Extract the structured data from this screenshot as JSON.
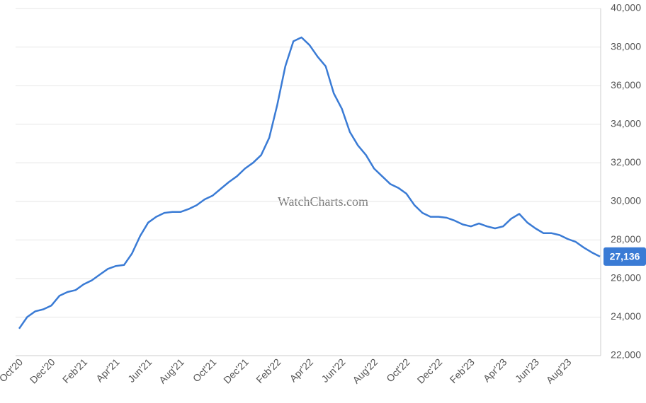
{
  "chart_data": {
    "type": "line",
    "annotation": "WatchCharts.com",
    "categories": [
      "Oct'20",
      null,
      null,
      null,
      "Dec'20",
      null,
      null,
      null,
      "Feb'21",
      null,
      null,
      null,
      "Apr'21",
      null,
      null,
      null,
      "Jun'21",
      null,
      null,
      null,
      "Aug'21",
      null,
      null,
      null,
      "Oct'21",
      null,
      null,
      null,
      "Dec'21",
      null,
      null,
      null,
      "Feb'22",
      null,
      null,
      null,
      "Apr'22",
      null,
      null,
      null,
      "Jun'22",
      null,
      null,
      null,
      "Aug'22",
      null,
      null,
      null,
      "Oct'22",
      null,
      null,
      null,
      "Dec'22",
      null,
      null,
      null,
      "Feb'23",
      null,
      null,
      null,
      "Apr'23",
      null,
      null,
      null,
      "Jun'23",
      null,
      null,
      null,
      "Aug'23",
      null,
      null,
      null,
      null
    ],
    "series": [
      {
        "color": "#3a7bd5",
        "values": [
          23400,
          24000,
          24300,
          24400,
          24600,
          25100,
          25300,
          25400,
          25700,
          25900,
          26200,
          26500,
          26650,
          26700,
          27300,
          28200,
          28900,
          29200,
          29400,
          29450,
          29450,
          29600,
          29800,
          30100,
          30300,
          30650,
          31000,
          31300,
          31700,
          32000,
          32400,
          33300,
          35000,
          37000,
          38300,
          38500,
          38100,
          37500,
          37000,
          35600,
          34800,
          33600,
          32900,
          32400,
          31700,
          31300,
          30900,
          30700,
          30400,
          29800,
          29400,
          29200,
          29200,
          29150,
          29000,
          28800,
          28700,
          28850,
          28700,
          28600,
          28700,
          29100,
          29350,
          28900,
          28600,
          28350,
          28350,
          28250,
          28050,
          27900,
          27600,
          27350,
          27136
        ],
        "value_labels": [
          null,
          null,
          null,
          null,
          null,
          null,
          null,
          null,
          null,
          null,
          null,
          null,
          null,
          null,
          null,
          null,
          null,
          null,
          null,
          null,
          null,
          null,
          null,
          null,
          null,
          null,
          null,
          null,
          null,
          null,
          null,
          null,
          null,
          null,
          null,
          null,
          null,
          null,
          null,
          null,
          null,
          null,
          null,
          null,
          null,
          null,
          null,
          null,
          null,
          null,
          null,
          null,
          null,
          null,
          null,
          null,
          null,
          null,
          null,
          null,
          null,
          null,
          null,
          null,
          null,
          null,
          null,
          null,
          null,
          null,
          null,
          null,
          "27,136"
        ]
      }
    ],
    "ylim": [
      22000,
      40000
    ],
    "yticks": [
      {
        "value": 22000,
        "label": "22,000"
      },
      {
        "value": 24000,
        "label": "24,000"
      },
      {
        "value": 26000,
        "label": "26,000"
      },
      {
        "value": 28000,
        "label": "28,000"
      },
      {
        "value": 30000,
        "label": "30,000"
      },
      {
        "value": 32000,
        "label": "32,000"
      },
      {
        "value": 34000,
        "label": "34,000"
      },
      {
        "value": 36000,
        "label": "36,000"
      },
      {
        "value": 38000,
        "label": "38,000"
      },
      {
        "value": 40000,
        "label": "40,000"
      }
    ],
    "grid": true
  }
}
